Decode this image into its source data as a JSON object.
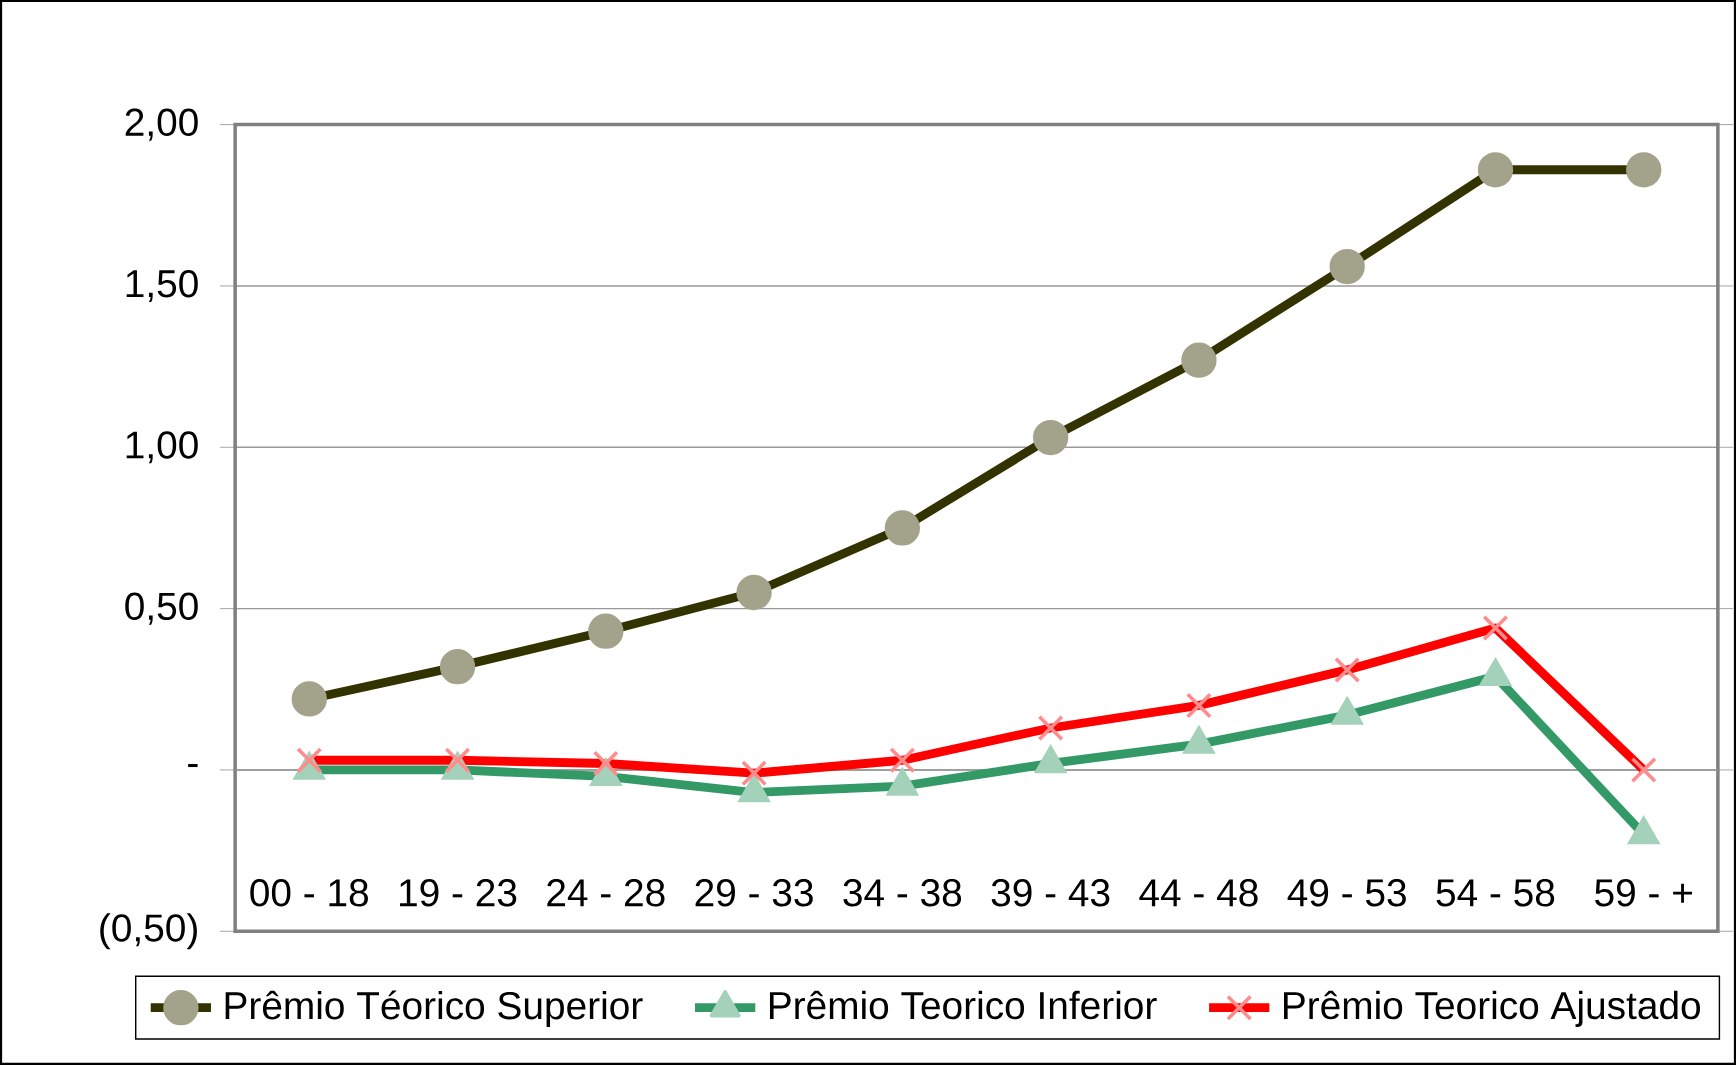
{
  "chart_data": {
    "type": "line",
    "categories": [
      "00 - 18",
      "19 - 23",
      "24 - 28",
      "29 - 33",
      "34 - 38",
      "39 - 43",
      "44 - 48",
      "49 - 53",
      "54 - 58",
      "59 - +"
    ],
    "series": [
      {
        "name": "Prêmio Téorico Superior",
        "color": "#333300",
        "marker": "circle",
        "values": [
          0.22,
          0.32,
          0.43,
          0.55,
          0.75,
          1.03,
          1.27,
          1.56,
          1.86,
          1.86
        ]
      },
      {
        "name": "Prêmio Teorico Inferior",
        "color": "#339966",
        "marker": "triangle",
        "values": [
          0.0,
          0.0,
          -0.02,
          -0.07,
          -0.05,
          0.02,
          0.08,
          0.17,
          0.29,
          -0.2
        ]
      },
      {
        "name": "Prêmio Teorico Ajustado",
        "color": "#ff0000",
        "marker": "cross",
        "values": [
          0.03,
          0.03,
          0.02,
          -0.01,
          0.03,
          0.13,
          0.2,
          0.31,
          0.44,
          0.0
        ]
      }
    ],
    "ylim": [
      -0.5,
      2.0
    ],
    "yticks": [
      {
        "value": -0.5,
        "label": "(0,50)"
      },
      {
        "value": 0,
        "label": "-"
      },
      {
        "value": 0.5,
        "label": "0,50"
      },
      {
        "value": 1.0,
        "label": "1,00"
      },
      {
        "value": 1.5,
        "label": "1,50"
      },
      {
        "value": 2.0,
        "label": "2,00"
      }
    ],
    "grid": "y",
    "legend": "bottom",
    "line_style": "solid"
  }
}
